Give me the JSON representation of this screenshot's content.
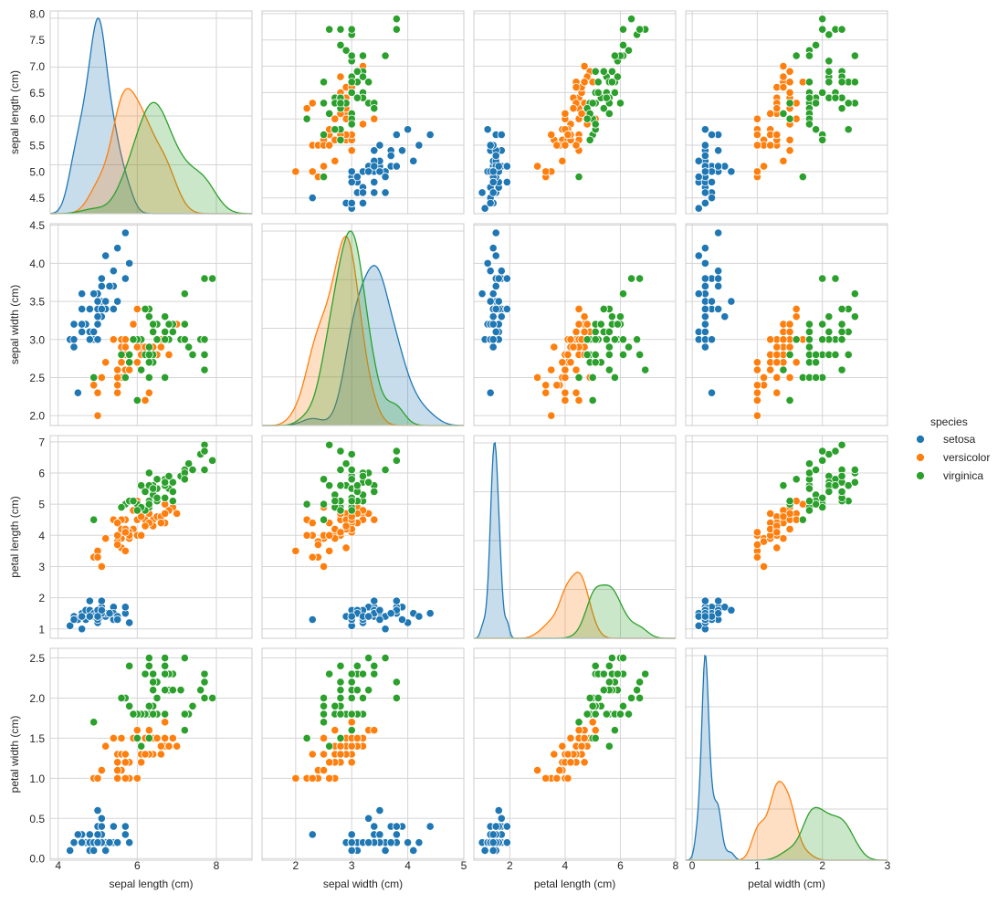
{
  "chart_data": {
    "type": "scatter",
    "title": "",
    "variables": [
      {
        "key": "sl",
        "label": "sepal length (cm)",
        "lim": [
          3.8,
          8.9
        ],
        "ylim": [
          4.2,
          8.05
        ],
        "ticks": [
          4,
          6,
          8
        ],
        "yticks": [
          4.5,
          5.0,
          5.5,
          6.0,
          6.5,
          7.0,
          7.5,
          8.0
        ],
        "ytick_labels": [
          "4.5",
          "5.0",
          "5.5",
          "6.0",
          "6.5",
          "7.0",
          "7.5",
          "8.0"
        ]
      },
      {
        "key": "sw",
        "label": "sepal width (cm)",
        "lim": [
          1.4,
          5.0
        ],
        "ylim": [
          1.87,
          4.52
        ],
        "ticks": [
          2,
          3,
          4,
          5
        ],
        "yticks": [
          2.0,
          2.5,
          3.0,
          3.5,
          4.0,
          4.5
        ],
        "ytick_labels": [
          "2.0",
          "2.5",
          "3.0",
          "3.5",
          "4.0",
          "4.5"
        ]
      },
      {
        "key": "pl",
        "label": "petal length (cm)",
        "lim": [
          0.7,
          8.0
        ],
        "ylim": [
          0.7,
          7.2
        ],
        "ticks": [
          2,
          4,
          6,
          8
        ],
        "yticks": [
          1,
          2,
          3,
          4,
          5,
          6,
          7
        ],
        "ytick_labels": [
          "1",
          "2",
          "3",
          "4",
          "5",
          "6",
          "7"
        ]
      },
      {
        "key": "pw",
        "label": "petal width (cm)",
        "lim": [
          -0.1,
          3.0
        ],
        "ylim": [
          -0.02,
          2.62
        ],
        "ticks": [
          0,
          1,
          2,
          3
        ],
        "yticks": [
          0.0,
          0.5,
          1.0,
          1.5,
          2.0,
          2.5
        ],
        "ytick_labels": [
          "0.0",
          "0.5",
          "1.0",
          "1.5",
          "2.0",
          "2.5"
        ]
      }
    ],
    "legend": {
      "title": "species",
      "placement": "right",
      "entries": [
        {
          "name": "setosa",
          "color": "#1f77b4"
        },
        {
          "name": "versicolor",
          "color": "#ff7f0e"
        },
        {
          "name": "virginica",
          "color": "#2ca02c"
        }
      ]
    },
    "grid": true,
    "diagonal": "kde",
    "series": [
      {
        "name": "setosa",
        "color": "#1f77b4",
        "points": [
          [
            5.1,
            3.5,
            1.4,
            0.2
          ],
          [
            4.9,
            3.0,
            1.4,
            0.2
          ],
          [
            4.7,
            3.2,
            1.3,
            0.2
          ],
          [
            4.6,
            3.1,
            1.5,
            0.2
          ],
          [
            5.0,
            3.6,
            1.4,
            0.2
          ],
          [
            5.4,
            3.9,
            1.7,
            0.4
          ],
          [
            4.6,
            3.4,
            1.4,
            0.3
          ],
          [
            5.0,
            3.4,
            1.5,
            0.2
          ],
          [
            4.4,
            2.9,
            1.4,
            0.2
          ],
          [
            4.9,
            3.1,
            1.5,
            0.1
          ],
          [
            5.4,
            3.7,
            1.5,
            0.2
          ],
          [
            4.8,
            3.4,
            1.6,
            0.2
          ],
          [
            4.8,
            3.0,
            1.4,
            0.1
          ],
          [
            4.3,
            3.0,
            1.1,
            0.1
          ],
          [
            5.8,
            4.0,
            1.2,
            0.2
          ],
          [
            5.7,
            4.4,
            1.5,
            0.4
          ],
          [
            5.4,
            3.9,
            1.3,
            0.4
          ],
          [
            5.1,
            3.5,
            1.4,
            0.3
          ],
          [
            5.7,
            3.8,
            1.7,
            0.3
          ],
          [
            5.1,
            3.8,
            1.5,
            0.3
          ],
          [
            5.4,
            3.4,
            1.7,
            0.2
          ],
          [
            5.1,
            3.7,
            1.5,
            0.4
          ],
          [
            4.6,
            3.6,
            1.0,
            0.2
          ],
          [
            5.1,
            3.3,
            1.7,
            0.5
          ],
          [
            4.8,
            3.4,
            1.9,
            0.2
          ],
          [
            5.0,
            3.0,
            1.6,
            0.2
          ],
          [
            5.0,
            3.4,
            1.6,
            0.4
          ],
          [
            5.2,
            3.5,
            1.5,
            0.2
          ],
          [
            5.2,
            3.4,
            1.4,
            0.2
          ],
          [
            4.7,
            3.2,
            1.6,
            0.2
          ],
          [
            4.8,
            3.1,
            1.6,
            0.2
          ],
          [
            5.4,
            3.4,
            1.5,
            0.4
          ],
          [
            5.2,
            4.1,
            1.5,
            0.1
          ],
          [
            5.5,
            4.2,
            1.4,
            0.2
          ],
          [
            4.9,
            3.1,
            1.5,
            0.2
          ],
          [
            5.0,
            3.2,
            1.2,
            0.2
          ],
          [
            5.5,
            3.5,
            1.3,
            0.2
          ],
          [
            4.9,
            3.6,
            1.4,
            0.1
          ],
          [
            4.4,
            3.0,
            1.3,
            0.2
          ],
          [
            5.1,
            3.4,
            1.5,
            0.2
          ],
          [
            5.0,
            3.5,
            1.3,
            0.3
          ],
          [
            4.5,
            2.3,
            1.3,
            0.3
          ],
          [
            4.4,
            3.2,
            1.3,
            0.2
          ],
          [
            5.0,
            3.5,
            1.6,
            0.6
          ],
          [
            5.1,
            3.8,
            1.9,
            0.4
          ],
          [
            4.8,
            3.0,
            1.4,
            0.3
          ],
          [
            5.1,
            3.8,
            1.6,
            0.2
          ],
          [
            4.6,
            3.2,
            1.4,
            0.2
          ],
          [
            5.3,
            3.7,
            1.5,
            0.2
          ],
          [
            5.0,
            3.3,
            1.4,
            0.2
          ]
        ]
      },
      {
        "name": "versicolor",
        "color": "#ff7f0e",
        "points": [
          [
            7.0,
            3.2,
            4.7,
            1.4
          ],
          [
            6.4,
            3.2,
            4.5,
            1.5
          ],
          [
            6.9,
            3.1,
            4.9,
            1.5
          ],
          [
            5.5,
            2.3,
            4.0,
            1.3
          ],
          [
            6.5,
            2.8,
            4.6,
            1.5
          ],
          [
            5.7,
            2.8,
            4.5,
            1.3
          ],
          [
            6.3,
            3.3,
            4.7,
            1.6
          ],
          [
            4.9,
            2.4,
            3.3,
            1.0
          ],
          [
            6.6,
            2.9,
            4.6,
            1.3
          ],
          [
            5.2,
            2.7,
            3.9,
            1.4
          ],
          [
            5.0,
            2.0,
            3.5,
            1.0
          ],
          [
            5.9,
            3.0,
            4.2,
            1.5
          ],
          [
            6.0,
            2.2,
            4.0,
            1.0
          ],
          [
            6.1,
            2.9,
            4.7,
            1.4
          ],
          [
            5.6,
            2.9,
            3.6,
            1.3
          ],
          [
            6.7,
            3.1,
            4.4,
            1.4
          ],
          [
            5.6,
            3.0,
            4.5,
            1.5
          ],
          [
            5.8,
            2.7,
            4.1,
            1.0
          ],
          [
            6.2,
            2.2,
            4.5,
            1.5
          ],
          [
            5.6,
            2.5,
            3.9,
            1.1
          ],
          [
            5.9,
            3.2,
            4.8,
            1.8
          ],
          [
            6.1,
            2.8,
            4.0,
            1.3
          ],
          [
            6.3,
            2.5,
            4.9,
            1.5
          ],
          [
            6.1,
            2.8,
            4.7,
            1.2
          ],
          [
            6.4,
            2.9,
            4.3,
            1.3
          ],
          [
            6.6,
            3.0,
            4.4,
            1.4
          ],
          [
            6.8,
            2.8,
            4.8,
            1.4
          ],
          [
            6.7,
            3.0,
            5.0,
            1.7
          ],
          [
            6.0,
            2.9,
            4.5,
            1.5
          ],
          [
            5.7,
            2.6,
            3.5,
            1.0
          ],
          [
            5.5,
            2.4,
            3.8,
            1.1
          ],
          [
            5.5,
            2.4,
            3.7,
            1.0
          ],
          [
            5.8,
            2.7,
            3.9,
            1.2
          ],
          [
            6.0,
            2.7,
            5.1,
            1.6
          ],
          [
            5.4,
            3.0,
            4.5,
            1.5
          ],
          [
            6.0,
            3.4,
            4.5,
            1.6
          ],
          [
            6.7,
            3.1,
            4.7,
            1.5
          ],
          [
            6.3,
            2.3,
            4.4,
            1.3
          ],
          [
            5.6,
            3.0,
            4.1,
            1.3
          ],
          [
            5.5,
            2.5,
            4.0,
            1.3
          ],
          [
            5.5,
            2.6,
            4.4,
            1.2
          ],
          [
            6.1,
            3.0,
            4.6,
            1.4
          ],
          [
            5.8,
            2.6,
            4.0,
            1.2
          ],
          [
            5.0,
            2.3,
            3.3,
            1.0
          ],
          [
            5.6,
            2.7,
            4.2,
            1.3
          ],
          [
            5.7,
            3.0,
            4.2,
            1.2
          ],
          [
            5.7,
            2.9,
            4.2,
            1.3
          ],
          [
            6.2,
            2.9,
            4.3,
            1.3
          ],
          [
            5.1,
            2.5,
            3.0,
            1.1
          ],
          [
            5.7,
            2.8,
            4.1,
            1.3
          ]
        ]
      },
      {
        "name": "virginica",
        "color": "#2ca02c",
        "points": [
          [
            6.3,
            3.3,
            6.0,
            2.5
          ],
          [
            5.8,
            2.7,
            5.1,
            1.9
          ],
          [
            7.1,
            3.0,
            5.9,
            2.1
          ],
          [
            6.3,
            2.9,
            5.6,
            1.8
          ],
          [
            6.5,
            3.0,
            5.8,
            2.2
          ],
          [
            7.6,
            3.0,
            6.6,
            2.1
          ],
          [
            4.9,
            2.5,
            4.5,
            1.7
          ],
          [
            7.3,
            2.9,
            6.3,
            1.8
          ],
          [
            6.7,
            2.5,
            5.8,
            1.8
          ],
          [
            7.2,
            3.6,
            6.1,
            2.5
          ],
          [
            6.5,
            3.2,
            5.1,
            2.0
          ],
          [
            6.4,
            2.7,
            5.3,
            1.9
          ],
          [
            6.8,
            3.0,
            5.5,
            2.1
          ],
          [
            5.7,
            2.5,
            5.0,
            2.0
          ],
          [
            5.8,
            2.8,
            5.1,
            2.4
          ],
          [
            6.4,
            3.2,
            5.3,
            2.3
          ],
          [
            6.5,
            3.0,
            5.5,
            1.8
          ],
          [
            7.7,
            3.8,
            6.7,
            2.2
          ],
          [
            7.7,
            2.6,
            6.9,
            2.3
          ],
          [
            6.0,
            2.2,
            5.0,
            1.5
          ],
          [
            6.9,
            3.2,
            5.7,
            2.3
          ],
          [
            5.6,
            2.8,
            4.9,
            2.0
          ],
          [
            7.7,
            2.8,
            6.7,
            2.0
          ],
          [
            6.3,
            2.7,
            4.9,
            1.8
          ],
          [
            6.7,
            3.3,
            5.7,
            2.1
          ],
          [
            7.2,
            3.2,
            6.0,
            1.8
          ],
          [
            6.2,
            2.8,
            4.8,
            1.8
          ],
          [
            6.1,
            3.0,
            4.9,
            1.8
          ],
          [
            6.4,
            2.8,
            5.6,
            2.1
          ],
          [
            7.2,
            3.0,
            5.8,
            1.6
          ],
          [
            7.4,
            2.8,
            6.1,
            1.9
          ],
          [
            7.9,
            3.8,
            6.4,
            2.0
          ],
          [
            6.4,
            2.8,
            5.6,
            2.2
          ],
          [
            6.3,
            2.8,
            5.1,
            1.5
          ],
          [
            6.1,
            2.6,
            5.6,
            1.4
          ],
          [
            7.7,
            3.0,
            6.1,
            2.3
          ],
          [
            6.3,
            3.4,
            5.6,
            2.4
          ],
          [
            6.4,
            3.1,
            5.5,
            1.8
          ],
          [
            6.0,
            3.0,
            4.8,
            1.8
          ],
          [
            6.9,
            3.1,
            5.4,
            2.1
          ],
          [
            6.7,
            3.1,
            5.6,
            2.4
          ],
          [
            6.9,
            3.1,
            5.1,
            2.3
          ],
          [
            5.8,
            2.7,
            5.1,
            1.9
          ],
          [
            6.8,
            3.2,
            5.9,
            2.3
          ],
          [
            6.7,
            3.3,
            5.7,
            2.5
          ],
          [
            6.7,
            3.0,
            5.2,
            2.3
          ],
          [
            6.3,
            2.5,
            5.0,
            1.9
          ],
          [
            6.5,
            3.0,
            5.2,
            2.0
          ],
          [
            6.2,
            3.4,
            5.4,
            2.3
          ],
          [
            5.9,
            3.0,
            5.1,
            1.8
          ]
        ]
      }
    ]
  }
}
